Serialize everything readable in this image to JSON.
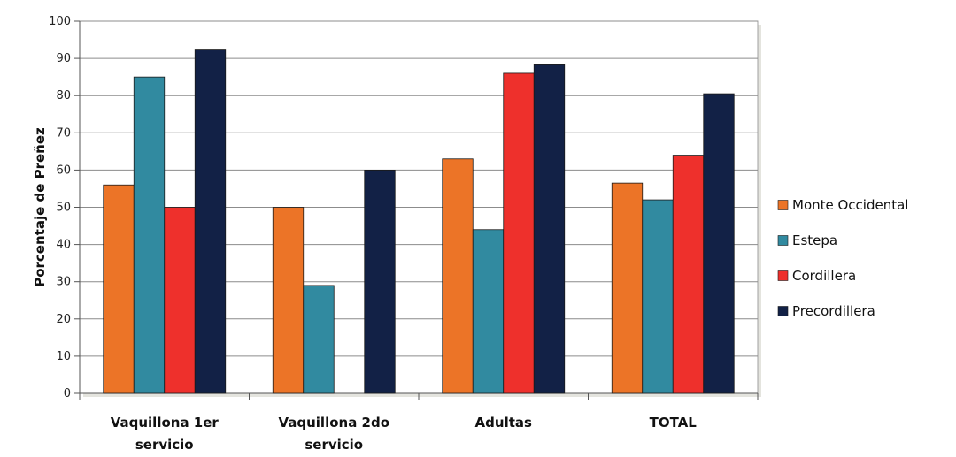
{
  "chart_data": {
    "type": "bar",
    "title": "",
    "xlabel": "",
    "ylabel": "Porcentaje de Preñez",
    "ylim": [
      0,
      100
    ],
    "yticks": [
      0,
      10,
      20,
      30,
      40,
      50,
      60,
      70,
      80,
      90,
      100
    ],
    "grid": true,
    "legend_position": "right",
    "categories": [
      [
        "Vaquillona 1er",
        "servicio"
      ],
      [
        "Vaquillona 2do",
        "servicio"
      ],
      [
        "Adultas"
      ],
      [
        "TOTAL"
      ]
    ],
    "series": [
      {
        "name": "Monte Occidental",
        "color": "#ec7427",
        "values": [
          56,
          50,
          63,
          56.5
        ]
      },
      {
        "name": "Estepa",
        "color": "#318aa0",
        "values": [
          85,
          29,
          44,
          52
        ]
      },
      {
        "name": "Cordillera",
        "color": "#ee302c",
        "values": [
          50,
          null,
          86,
          64
        ]
      },
      {
        "name": "Precordillera",
        "color": "#122146",
        "values": [
          92.5,
          60,
          88.5,
          80.5
        ]
      }
    ]
  }
}
